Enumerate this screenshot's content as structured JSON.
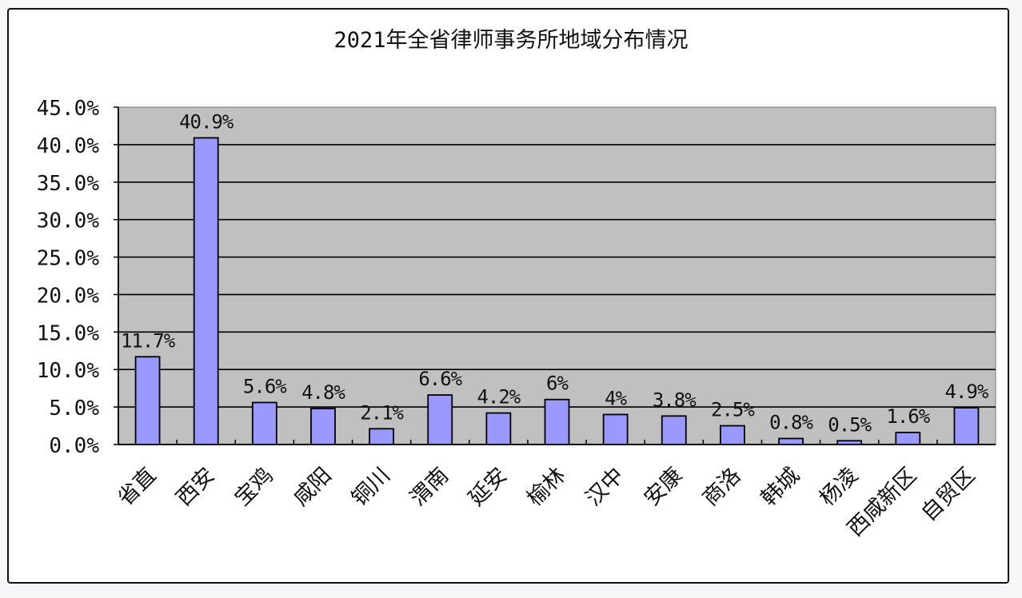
{
  "chart_data": {
    "type": "bar",
    "title": "2021年全省律师事务所地域分布情况",
    "xlabel": "",
    "ylabel": "",
    "categories": [
      "省直",
      "西安",
      "宝鸡",
      "咸阳",
      "铜川",
      "渭南",
      "延安",
      "榆林",
      "汉中",
      "安康",
      "商洛",
      "韩城",
      "杨凌",
      "西咸新区",
      "自贸区"
    ],
    "values": [
      11.7,
      40.9,
      5.6,
      4.8,
      2.1,
      6.6,
      4.2,
      6.0,
      4.0,
      3.8,
      2.5,
      0.8,
      0.5,
      1.6,
      4.9
    ],
    "data_labels": [
      "11.7%",
      "40.9%",
      "5.6%",
      "4.8%",
      "2.1%",
      "6.6%",
      "4.2%",
      "6%",
      "4%",
      "3.8%",
      "2.5%",
      "0.8%",
      "0.5%",
      "1.6%",
      "4.9%"
    ],
    "ylim": [
      0,
      45
    ],
    "yticks": [
      "0.0%",
      "5.0%",
      "10.0%",
      "15.0%",
      "20.0%",
      "25.0%",
      "30.0%",
      "35.0%",
      "40.0%",
      "45.0%"
    ],
    "grid": true,
    "legend": "none",
    "colors": {
      "bar": "#9999ff",
      "bar_border": "#000000",
      "plot_bg": "#c0c0c0",
      "grid": "#000000"
    }
  }
}
